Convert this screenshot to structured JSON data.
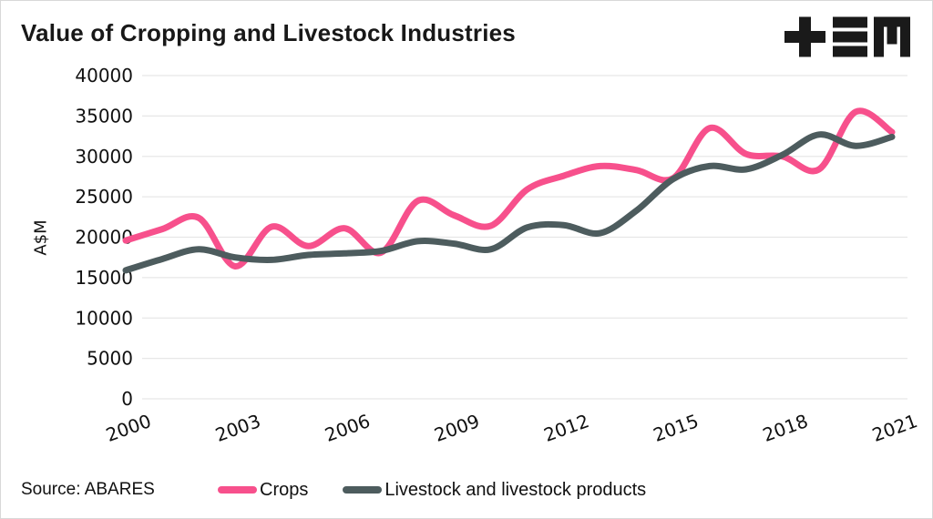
{
  "title": "Value of Cropping and Livestock Industries",
  "source_note": "Source: ABARES",
  "logo": {
    "name": "tem-logo",
    "glyphs": [
      "plus",
      "triple-bar",
      "m-block"
    ],
    "color": "#1a1a1a"
  },
  "colors": {
    "crops": "#f7508c",
    "livestock": "#4d5c5e",
    "gridline": "#e7e7e7",
    "text": "#111111"
  },
  "chart_data": {
    "type": "line",
    "title": "Value of Cropping and Livestock Industries",
    "xlabel": "",
    "ylabel": "A$M",
    "x": [
      2000,
      2001,
      2002,
      2003,
      2004,
      2005,
      2006,
      2007,
      2008,
      2009,
      2010,
      2011,
      2012,
      2013,
      2014,
      2015,
      2016,
      2017,
      2018,
      2019,
      2020,
      2021
    ],
    "x_tick_labels": [
      "2000",
      "2003",
      "2006",
      "2009",
      "2012",
      "2015",
      "2018",
      "2021"
    ],
    "y_ticks": [
      0,
      5000,
      10000,
      15000,
      20000,
      25000,
      30000,
      35000,
      40000
    ],
    "ylim": [
      0,
      40000
    ],
    "grid": true,
    "line_smoothing": "spline",
    "legend_position": "bottom",
    "series": [
      {
        "name": "Crops",
        "color": "#f7508c",
        "values": [
          19600,
          21000,
          22400,
          16400,
          21300,
          18900,
          21100,
          18100,
          24500,
          22700,
          21400,
          25900,
          27600,
          28800,
          28300,
          27300,
          33500,
          30300,
          30000,
          28400,
          35500,
          33000
        ]
      },
      {
        "name": "Livestock and livestock products",
        "color": "#4d5c5e",
        "values": [
          15900,
          17300,
          18500,
          17500,
          17200,
          17800,
          18000,
          18300,
          19500,
          19200,
          18500,
          21200,
          21500,
          20500,
          23300,
          27200,
          28800,
          28400,
          30200,
          32700,
          31300,
          32400
        ]
      }
    ]
  }
}
